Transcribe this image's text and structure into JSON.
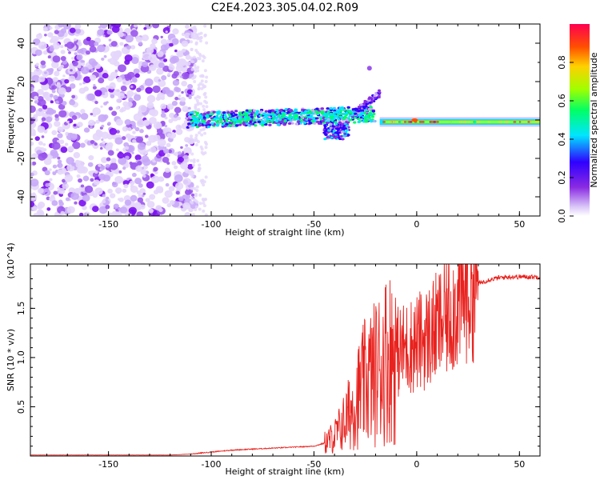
{
  "title": "C2E4.2023.305.04.02.R09",
  "chart_data": [
    {
      "type": "heatmap",
      "xlabel": "Height of straight line (km)",
      "ylabel": "Frequency (Hz)",
      "xlim": [
        -188,
        60
      ],
      "ylim": [
        -50,
        50
      ],
      "xticks": [
        -150,
        -100,
        -50,
        0,
        50
      ],
      "yticks": [
        -40,
        -20,
        0,
        20,
        40
      ],
      "colorbar": {
        "label": "Normalized spectral amplitude",
        "range": [
          0,
          1
        ],
        "ticks": [
          0.0,
          0.2,
          0.4,
          0.6,
          0.8
        ],
        "colors": [
          "#ffffff",
          "#c8a8f8",
          "#8a2be2",
          "#2f00ff",
          "#00e5ff",
          "#00ff66",
          "#a0ff00",
          "#ffd000",
          "#ff5000",
          "#ff0050"
        ]
      }
    },
    {
      "type": "line",
      "xlabel": "Height of straight line (km)",
      "ylabel": "SNR (10 * v/v)",
      "scale_label": "(x10^4)",
      "xlim": [
        -188,
        60
      ],
      "ylim": [
        0,
        1.95
      ],
      "xticks": [
        -150,
        -100,
        -50,
        0,
        50
      ],
      "yticks": [
        0.5,
        1.0,
        1.5
      ],
      "line_color": "#e8221e",
      "x": [
        -188,
        -150,
        -120,
        -110,
        -100,
        -90,
        -80,
        -70,
        -60,
        -50,
        -45,
        -40,
        -35,
        -30,
        -25,
        -20,
        -15,
        -10,
        -5,
        0,
        5,
        10,
        15,
        20,
        25,
        30,
        35,
        40,
        45,
        50,
        55,
        60
      ],
      "y": [
        0.01,
        0.01,
        0.01,
        0.02,
        0.04,
        0.06,
        0.07,
        0.08,
        0.09,
        0.1,
        0.13,
        0.2,
        0.35,
        0.55,
        0.75,
        0.85,
        1.0,
        1.05,
        1.1,
        1.15,
        1.2,
        1.3,
        1.42,
        1.55,
        1.68,
        1.75,
        1.79,
        1.81,
        1.82,
        1.82,
        1.82,
        1.82
      ]
    }
  ]
}
